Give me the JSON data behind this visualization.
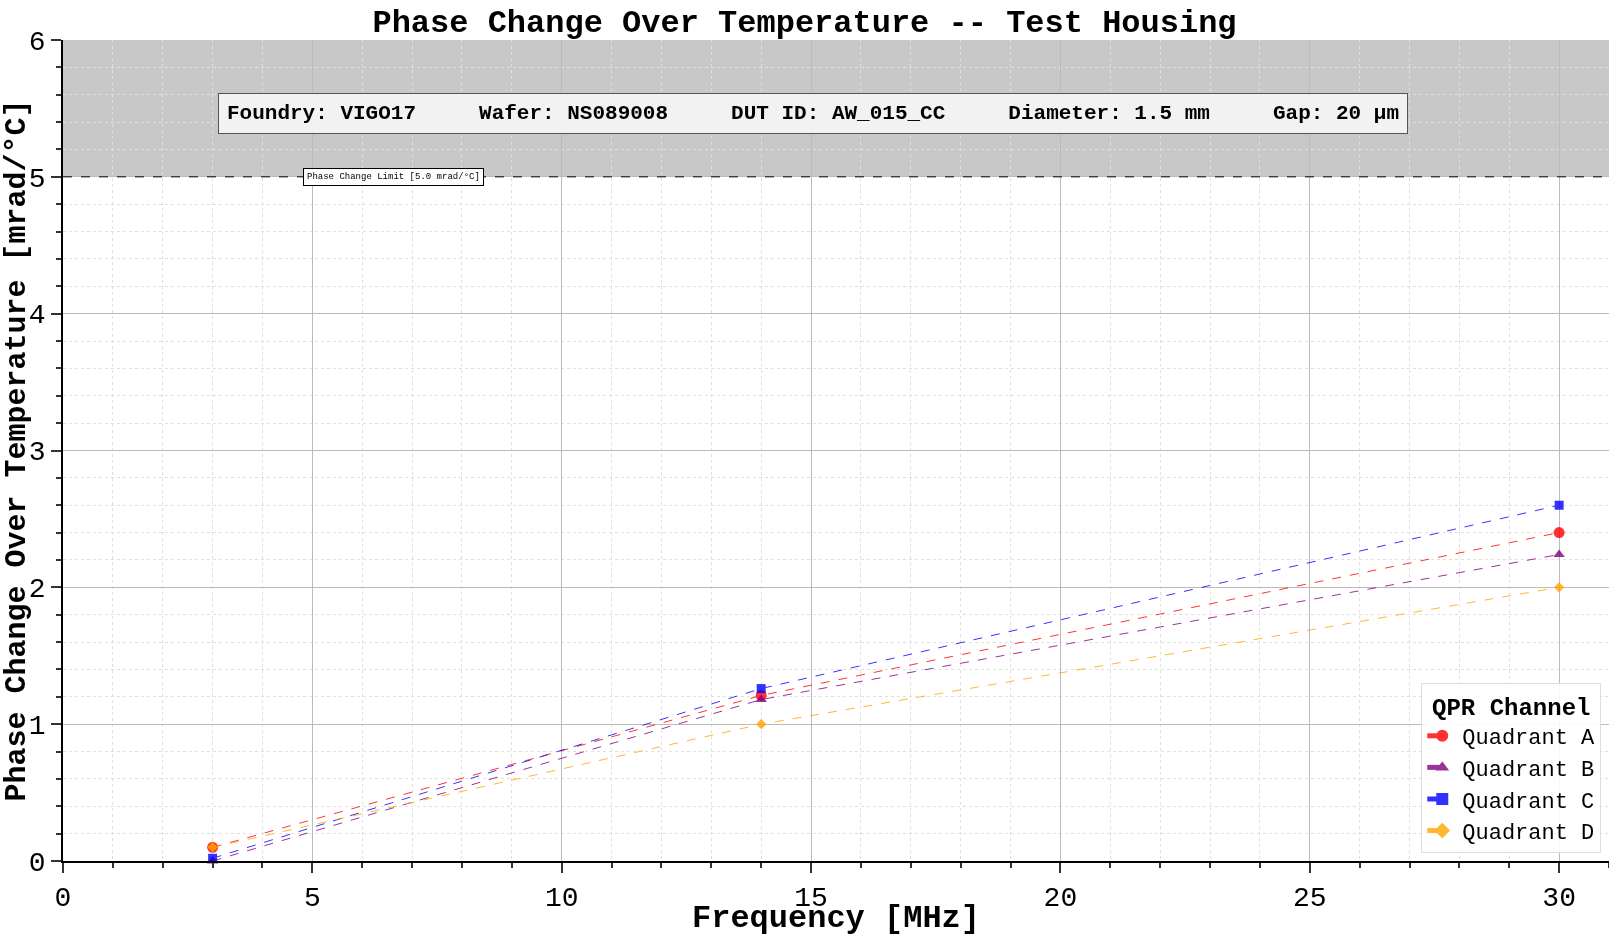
{
  "chart_data": {
    "type": "line",
    "title": "Phase Change Over Temperature -- Test Housing",
    "xlabel": "Frequency [MHz]",
    "ylabel": "Phase Change Over Temperature [mrad/°C]",
    "legend_title": "QPR Channel",
    "legend": "bottom right",
    "grid": true,
    "line_style": "dashed",
    "x": [
      3,
      14,
      30
    ],
    "series": [
      {
        "name": "Quadrant A",
        "color": "#ff0000",
        "marker": "circle",
        "values": [
          0.1,
          1.21,
          2.4
        ]
      },
      {
        "name": "Quadrant B",
        "color": "#800080",
        "marker": "triangle",
        "values": [
          0.0,
          1.18,
          2.24
        ]
      },
      {
        "name": "Quadrant C",
        "color": "#0000ff",
        "marker": "square",
        "values": [
          0.02,
          1.26,
          2.6
        ]
      },
      {
        "name": "Quadrant D",
        "color": "#ffa500",
        "marker": "diamond",
        "values": [
          0.1,
          1.0,
          2.0
        ]
      }
    ],
    "xlim": [
      0,
      31
    ],
    "xticks": [
      0,
      5,
      10,
      15,
      20,
      25,
      30
    ],
    "ylim": [
      0,
      6
    ],
    "yticks": [
      0,
      1,
      2,
      3,
      4,
      5,
      6
    ],
    "ref_lines": [
      {
        "axis": "y",
        "value": 5,
        "label": "Phase Change Limit [5.0 mrad/°C]",
        "color": "#000000",
        "line_style": "dashed"
      }
    ],
    "bands": [
      {
        "axis": "y",
        "from": 5,
        "to": 6,
        "color": "#c8c8c8"
      }
    ],
    "annotations": [
      "Foundry: VIGO17     Wafer: NS089008     DUT ID: AW_015_CC     Diameter: 1.5 mm     Gap: 20 µm"
    ]
  }
}
